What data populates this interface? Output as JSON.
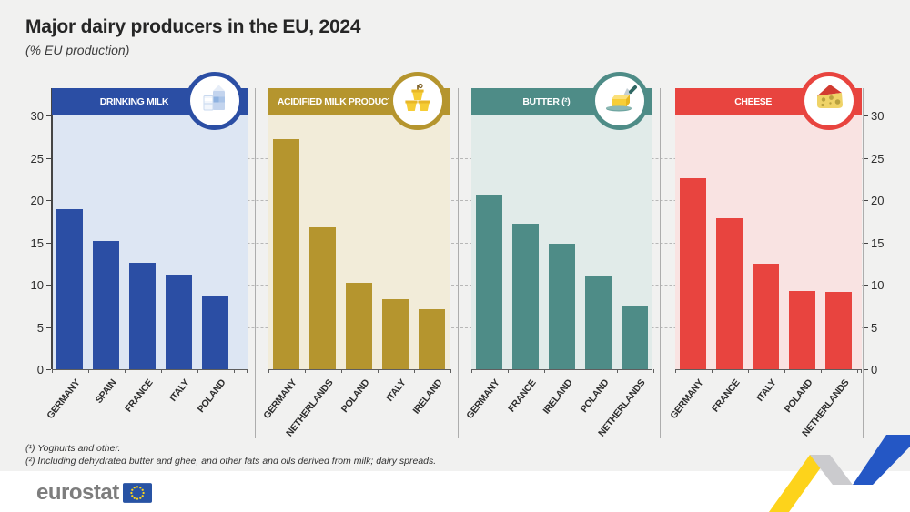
{
  "title": "Major dairy producers in the EU, 2024",
  "subtitle": "(% EU production)",
  "y_axis": {
    "ticks": [
      "30",
      "25",
      "20",
      "15",
      "10",
      "5",
      "0"
    ],
    "values": [
      30,
      25,
      20,
      15,
      10,
      5,
      0
    ],
    "max": 30,
    "gridline_step": 5,
    "grid": "dashed"
  },
  "chart_data": [
    {
      "type": "bar",
      "title": "DRINKING MILK",
      "icon": "milk-icon",
      "color": "#2b4ea4",
      "bg_color": "#dde6f3",
      "categories": [
        "GERMANY",
        "SPAIN",
        "FRANCE",
        "ITALY",
        "POLAND"
      ],
      "values": [
        18.9,
        15.2,
        12.6,
        11.2,
        8.6
      ],
      "ylim": [
        0,
        30
      ]
    },
    {
      "type": "bar",
      "title": "ACIDIFIED MILK PRODUCTS (¹)",
      "icon": "yogurt-icon",
      "color": "#b5952e",
      "bg_color": "#f2ecd9",
      "categories": [
        "GERMANY",
        "NETHERLANDS",
        "POLAND",
        "ITALY",
        "IRELAND"
      ],
      "values": [
        27.2,
        16.8,
        10.2,
        8.3,
        7.1
      ],
      "ylim": [
        0,
        30
      ]
    },
    {
      "type": "bar",
      "title": "BUTTER (²)",
      "icon": "butter-icon",
      "color": "#4e8c87",
      "bg_color": "#e1ebe9",
      "categories": [
        "GERMANY",
        "FRANCE",
        "IRELAND",
        "POLAND",
        "NETHERLANDS"
      ],
      "values": [
        20.7,
        17.2,
        14.8,
        11.0,
        7.5
      ],
      "ylim": [
        0,
        30
      ]
    },
    {
      "type": "bar",
      "title": "CHEESE",
      "icon": "cheese-icon",
      "color": "#e8443f",
      "bg_color": "#f9e3e2",
      "categories": [
        "GERMANY",
        "FRANCE",
        "ITALY",
        "POLAND",
        "NETHERLANDS"
      ],
      "values": [
        22.6,
        17.9,
        12.5,
        9.3,
        9.1
      ],
      "ylim": [
        0,
        30
      ]
    }
  ],
  "footnotes": [
    "(¹) Yoghurts and other.",
    "(²) Including dehydrated butter and ghee, and other fats and oils derived from milk; dairy spreads."
  ],
  "logo": {
    "text": "eurostat"
  },
  "colors": {
    "page_bg": "#f1f1f0",
    "footer_bg": "#ffffff",
    "ribbon_yellow": "#fdd31b",
    "ribbon_blue": "#2457c5",
    "ribbon_gray": "#cbcbce",
    "eu_flag_blue": "#2853a4",
    "eu_star_yellow": "#ffd617"
  }
}
